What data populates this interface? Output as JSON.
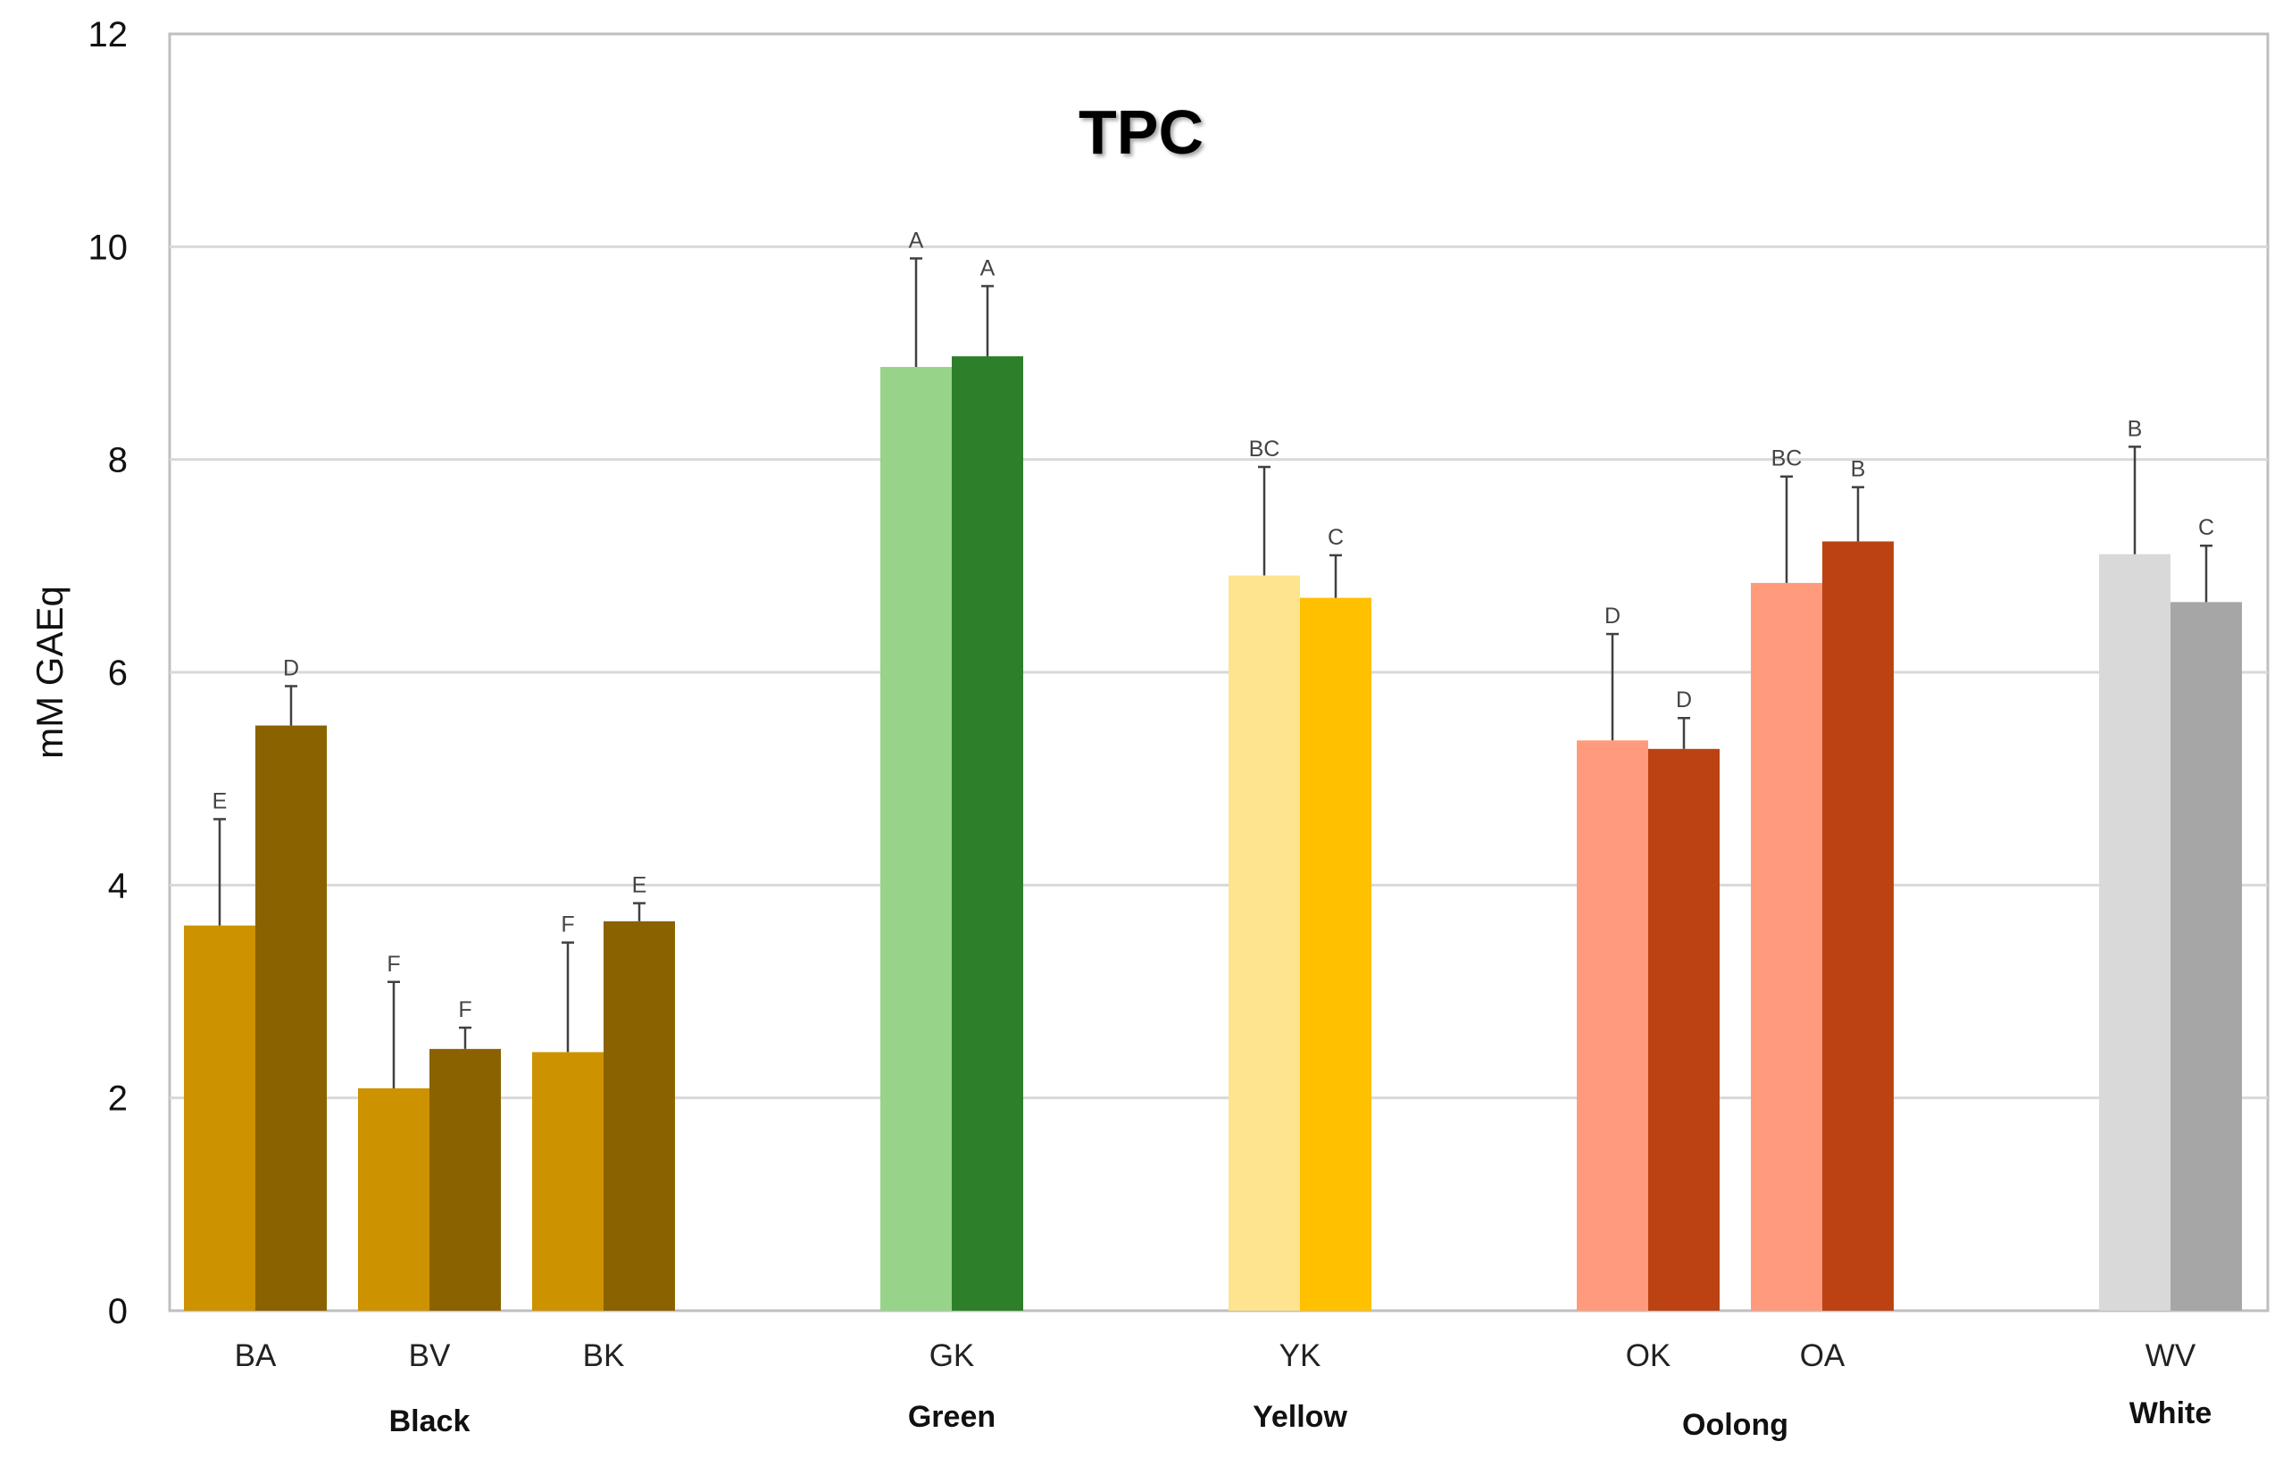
{
  "chart_data": {
    "type": "bar",
    "title": "TPC",
    "xlabel": "",
    "ylabel": "mM GAEq",
    "ylim": [
      0,
      12
    ],
    "yticks": [
      0,
      2,
      4,
      6,
      8,
      10,
      12
    ],
    "grid": true,
    "legend": "none",
    "categories": [
      "BA",
      "BV",
      "BK",
      "GK",
      "YK",
      "OK",
      "OA",
      "WV"
    ],
    "groups": [
      {
        "name": "Black",
        "categories": [
          "BA",
          "BV",
          "BK"
        ]
      },
      {
        "name": "Green",
        "categories": [
          "GK"
        ]
      },
      {
        "name": "Yellow",
        "categories": [
          "YK"
        ]
      },
      {
        "name": "Oolong",
        "categories": [
          "OK",
          "OA"
        ]
      },
      {
        "name": "White",
        "categories": [
          "WV"
        ]
      }
    ],
    "bars": [
      {
        "category": "BA",
        "pair": [
          {
            "value": 3.62,
            "error": 1.0,
            "sig": "E",
            "color": "#CC9200"
          },
          {
            "value": 5.5,
            "error": 0.37,
            "sig": "D",
            "color": "#8A6200"
          }
        ]
      },
      {
        "category": "BV",
        "pair": [
          {
            "value": 2.09,
            "error": 1.0,
            "sig": "F",
            "color": "#CC9200"
          },
          {
            "value": 2.46,
            "error": 0.2,
            "sig": "F",
            "color": "#8A6200"
          }
        ]
      },
      {
        "category": "BK",
        "pair": [
          {
            "value": 2.43,
            "error": 1.03,
            "sig": "F",
            "color": "#CC9200"
          },
          {
            "value": 3.66,
            "error": 0.17,
            "sig": "E",
            "color": "#8A6200"
          }
        ]
      },
      {
        "category": "GK",
        "pair": [
          {
            "value": 8.87,
            "error": 1.02,
            "sig": "A",
            "color": "#98D38A"
          },
          {
            "value": 8.97,
            "error": 0.66,
            "sig": "A",
            "color": "#2E7F2A"
          }
        ]
      },
      {
        "category": "YK",
        "pair": [
          {
            "value": 6.91,
            "error": 1.02,
            "sig": "BC",
            "color": "#FFE48F"
          },
          {
            "value": 6.7,
            "error": 0.4,
            "sig": "C",
            "color": "#FFC000"
          }
        ]
      },
      {
        "category": "OK",
        "pair": [
          {
            "value": 5.36,
            "error": 1.0,
            "sig": "D",
            "color": "#FF9B7C"
          },
          {
            "value": 5.28,
            "error": 0.29,
            "sig": "D",
            "color": "#BC4213"
          }
        ]
      },
      {
        "category": "OA",
        "pair": [
          {
            "value": 6.84,
            "error": 1.0,
            "sig": "BC",
            "color": "#FF9B7C"
          },
          {
            "value": 7.23,
            "error": 0.51,
            "sig": "B",
            "color": "#BC4213"
          }
        ]
      },
      {
        "category": "WV",
        "pair": [
          {
            "value": 7.11,
            "error": 1.01,
            "sig": "B",
            "color": "#D9D9D9"
          },
          {
            "value": 6.66,
            "error": 0.53,
            "sig": "C",
            "color": "#A6A6A6"
          }
        ]
      }
    ]
  }
}
